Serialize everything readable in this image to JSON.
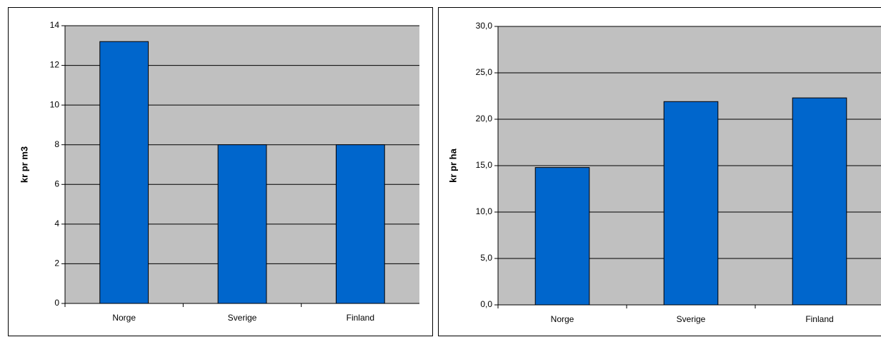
{
  "chart_data": [
    {
      "type": "bar",
      "y_label": "kr pr m3",
      "categories": [
        "Norge",
        "Sverige",
        "Finland"
      ],
      "values": [
        13.2,
        8,
        8
      ],
      "color": "#0066cc",
      "ylim": [
        0,
        14
      ],
      "yticks": [
        0,
        2,
        4,
        6,
        8,
        10,
        12,
        14
      ],
      "grid": true
    },
    {
      "type": "bar",
      "y_label": "kr pr ha",
      "categories": [
        "Norge",
        "Sverige",
        "Finland"
      ],
      "values": [
        14.8,
        21.9,
        22.3
      ],
      "color": "#0066cc",
      "ylim": [
        0,
        30
      ],
      "yticks": [
        {
          "value": 0,
          "label": "0,0"
        },
        {
          "value": 5,
          "label": "5,0"
        },
        {
          "value": 10,
          "label": "10,0"
        },
        {
          "value": 15,
          "label": "15,0"
        },
        {
          "value": 20,
          "label": "20,0"
        },
        {
          "value": 25,
          "label": "25,0"
        },
        {
          "value": 30,
          "label": "30,0"
        }
      ],
      "grid": true
    }
  ]
}
